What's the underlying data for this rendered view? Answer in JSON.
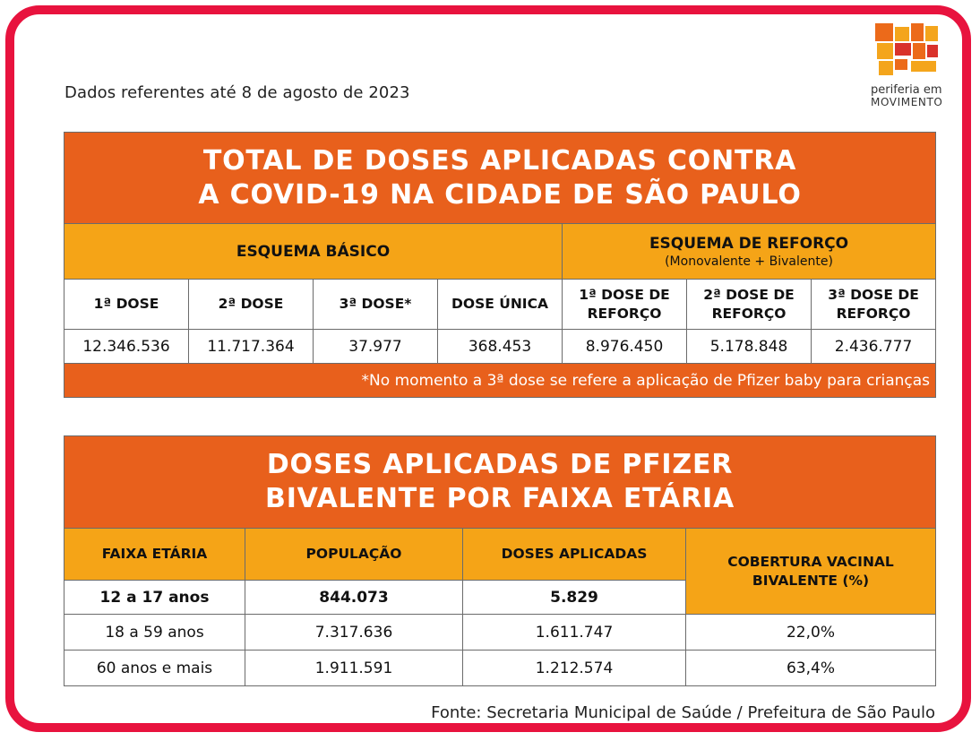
{
  "header": {
    "date_note": "Dados referentes até 8 de agosto de 2023",
    "logo_line1": "periferia em",
    "logo_line2": "MOVIMENTO"
  },
  "table1": {
    "title_line1": "TOTAL DE DOSES APLICADAS CONTRA",
    "title_line2": "A COVID-19 NA CIDADE DE SÃO PAULO",
    "group_basic": "ESQUEMA BÁSICO",
    "group_booster": "ESQUEMA DE REFORÇO",
    "group_booster_sub": "(Monovalente + Bivalente)",
    "columns": [
      "1ª DOSE",
      "2ª DOSE",
      "3ª DOSE*",
      "DOSE ÚNICA",
      "1ª DOSE DE REFORÇO",
      "2ª DOSE DE REFORÇO",
      "3ª DOSE DE REFORÇO"
    ],
    "values": [
      "12.346.536",
      "11.717.364",
      "37.977",
      "368.453",
      "8.976.450",
      "5.178.848",
      "2.436.777"
    ],
    "footnote": "*No momento a 3ª dose se refere a aplicação de Pfizer baby para crianças"
  },
  "table2": {
    "title_line1": "DOSES APLICADAS DE PFIZER",
    "title_line2": "BIVALENTE POR FAIXA ETÁRIA",
    "columns": [
      "FAIXA ETÁRIA",
      "POPULAÇÃO",
      "DOSES APLICADAS",
      "COBERTURA VACINAL BIVALENTE (%)"
    ],
    "rows": [
      {
        "age": "12 a 17 anos",
        "population": "844.073",
        "doses": "5.829",
        "coverage": ""
      },
      {
        "age": "18 a 59 anos",
        "population": "7.317.636",
        "doses": "1.611.747",
        "coverage": "22,0%"
      },
      {
        "age": "60 anos e mais",
        "population": "1.911.591",
        "doses": "1.212.574",
        "coverage": "63,4%"
      }
    ]
  },
  "footer": {
    "source": "Fonte: Secretaria Municipal de Saúde / Prefeitura de São Paulo"
  },
  "colors": {
    "frame": "#e8133e",
    "title_orange": "#e8601c",
    "header_yellow": "#f5a417"
  }
}
